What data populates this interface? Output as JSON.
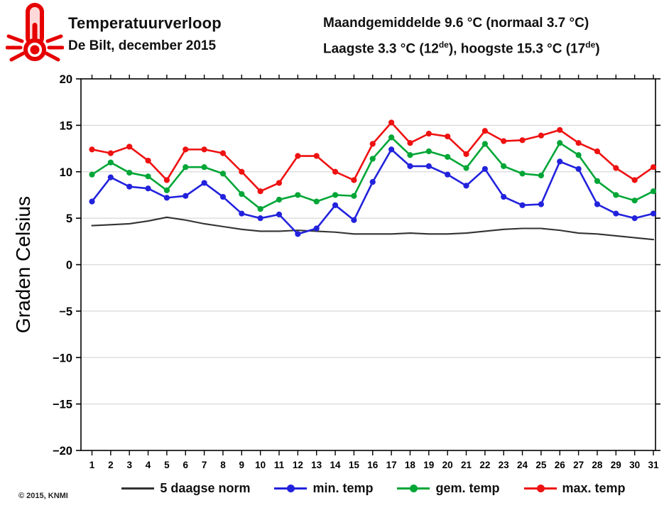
{
  "header": {
    "title": "Temperatuurverloop",
    "subtitle": "De Bilt, december 2015",
    "stats_line1": "Maandgemiddelde 9.6 °C (normaal 3.7 °C)",
    "stats_line2": {
      "p1": "Laagste 3.3 °C (12",
      "sup1": "de",
      "p2": "), hoogste 15.3 °C (17",
      "sup2": "de",
      "p3": ")"
    }
  },
  "footer": {
    "copyright": "© 2015, KNMI"
  },
  "chart_data": {
    "type": "line",
    "title": "Temperatuurverloop De Bilt, december 2015",
    "xlabel": "",
    "ylabel": "Graden Celsius",
    "ylim": [
      -20,
      20
    ],
    "yticks": [
      20,
      15,
      10,
      5,
      0,
      -5,
      -10,
      -15,
      -20
    ],
    "grid": true,
    "legend_position": "bottom",
    "x": [
      1,
      2,
      3,
      4,
      5,
      6,
      7,
      8,
      9,
      10,
      11,
      12,
      13,
      14,
      15,
      16,
      17,
      18,
      19,
      20,
      21,
      22,
      23,
      24,
      25,
      26,
      27,
      28,
      29,
      30,
      31
    ],
    "series": [
      {
        "name": "5 daagse norm",
        "color": "#333333",
        "marker": false,
        "values": [
          4.2,
          4.3,
          4.4,
          4.7,
          5.1,
          4.8,
          4.4,
          4.1,
          3.8,
          3.6,
          3.6,
          3.7,
          3.6,
          3.5,
          3.3,
          3.3,
          3.3,
          3.4,
          3.3,
          3.3,
          3.4,
          3.6,
          3.8,
          3.9,
          3.9,
          3.7,
          3.4,
          3.3,
          3.1,
          2.9,
          2.7
        ]
      },
      {
        "name": "min. temp",
        "color": "#2222dd",
        "marker": true,
        "values": [
          6.8,
          9.4,
          8.4,
          8.2,
          7.2,
          7.4,
          8.8,
          7.3,
          5.5,
          5.0,
          5.4,
          3.3,
          3.9,
          6.4,
          4.8,
          8.9,
          12.4,
          10.6,
          10.6,
          9.7,
          8.5,
          10.3,
          7.3,
          6.4,
          6.5,
          11.1,
          10.3,
          6.5,
          5.5,
          5.0,
          5.5
        ]
      },
      {
        "name": "gem. temp",
        "color": "#00a636",
        "marker": true,
        "values": [
          9.7,
          11.0,
          9.9,
          9.5,
          8.0,
          10.5,
          10.5,
          9.8,
          7.6,
          6.0,
          7.0,
          7.5,
          6.8,
          7.5,
          7.4,
          11.4,
          13.7,
          11.8,
          12.2,
          11.6,
          10.4,
          13.0,
          10.6,
          9.8,
          9.6,
          13.1,
          11.8,
          9.0,
          7.5,
          6.9,
          7.9
        ]
      },
      {
        "name": "max. temp",
        "color": "#ee1111",
        "marker": true,
        "values": [
          12.4,
          12.0,
          12.7,
          11.2,
          9.1,
          12.4,
          12.4,
          12.0,
          10.0,
          7.9,
          8.8,
          11.7,
          11.7,
          10.0,
          9.1,
          13.0,
          15.3,
          13.1,
          14.1,
          13.8,
          11.9,
          14.4,
          13.3,
          13.4,
          13.9,
          14.5,
          13.1,
          12.2,
          10.4,
          9.1,
          10.5
        ]
      }
    ]
  }
}
